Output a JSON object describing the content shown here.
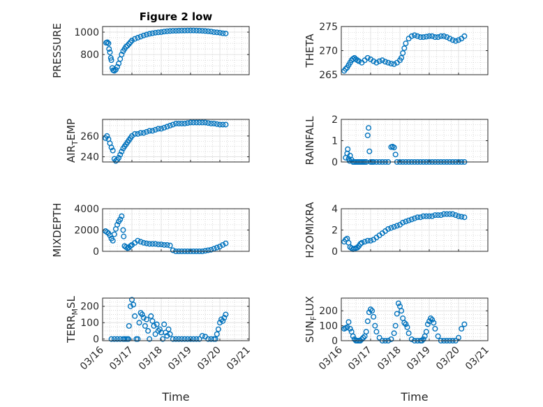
{
  "figure_title": "Figure 2 low",
  "x_axis": {
    "label": "Time",
    "ticks": [
      {
        "day": 16,
        "label": "03/16"
      },
      {
        "day": 17,
        "label": "03/17"
      },
      {
        "day": 18,
        "label": "03/18"
      },
      {
        "day": 19,
        "label": "03/19"
      },
      {
        "day": 20,
        "label": "03/20"
      },
      {
        "day": 21,
        "label": "03/21"
      }
    ],
    "xlim": [
      16,
      21
    ]
  },
  "colors": {
    "marker": "#0072BD",
    "axes": "#262626",
    "grid": "#bfbfbf"
  },
  "chart_data": [
    {
      "type": "scatter",
      "ylabel": "PRESSURE",
      "ylim": [
        620,
        1050
      ],
      "yticks": [
        800,
        1000
      ],
      "show_xticks": false,
      "x": [
        16.12,
        16.16,
        16.2,
        16.22,
        16.25,
        16.28,
        16.3,
        16.33,
        16.36,
        16.4,
        16.45,
        16.5,
        16.55,
        16.6,
        16.65,
        16.7,
        16.75,
        16.8,
        16.85,
        16.9,
        16.95,
        17.0,
        17.1,
        17.2,
        17.3,
        17.4,
        17.5,
        17.6,
        17.7,
        17.8,
        17.9,
        18.0,
        18.1,
        18.2,
        18.3,
        18.4,
        18.5,
        18.6,
        18.7,
        18.8,
        18.9,
        19.0,
        19.1,
        19.2,
        19.3,
        19.4,
        19.5,
        19.6,
        19.7,
        19.8,
        19.9,
        20.0,
        20.1,
        20.2
      ],
      "values": [
        905,
        910,
        900,
        850,
        820,
        770,
        750,
        680,
        660,
        655,
        665,
        690,
        720,
        760,
        800,
        830,
        850,
        870,
        880,
        895,
        910,
        925,
        940,
        950,
        960,
        970,
        978,
        985,
        990,
        995,
        998,
        1000,
        1005,
        1008,
        1010,
        1012,
        1012,
        1013,
        1014,
        1014,
        1015,
        1015,
        1015,
        1014,
        1013,
        1012,
        1010,
        1008,
        1005,
        1000,
        998,
        995,
        990,
        988
      ]
    },
    {
      "type": "scatter",
      "ylabel": "THETA",
      "ylim": [
        265,
        275
      ],
      "yticks": [
        265,
        270,
        275
      ],
      "show_xticks": false,
      "x": [
        16.1,
        16.15,
        16.2,
        16.25,
        16.3,
        16.35,
        16.4,
        16.45,
        16.5,
        16.55,
        16.6,
        16.7,
        16.8,
        16.9,
        17.0,
        17.1,
        17.2,
        17.3,
        17.4,
        17.5,
        17.6,
        17.7,
        17.8,
        17.9,
        18.0,
        18.05,
        18.1,
        18.15,
        18.2,
        18.3,
        18.4,
        18.5,
        18.6,
        18.7,
        18.8,
        18.9,
        19.0,
        19.1,
        19.2,
        19.3,
        19.4,
        19.5,
        19.6,
        19.7,
        19.8,
        19.9,
        20.0,
        20.1,
        20.2
      ],
      "values": [
        265.8,
        266.2,
        266.5,
        267,
        267.5,
        268,
        268.3,
        268.5,
        268.2,
        268,
        267.8,
        267.5,
        268,
        268.5,
        268.2,
        267.8,
        267.5,
        267.8,
        268,
        267.7,
        267.5,
        267.3,
        267.2,
        267.5,
        268,
        268.5,
        269.5,
        270.5,
        271.5,
        272.5,
        273,
        273.2,
        273,
        272.8,
        272.8,
        272.9,
        273,
        273,
        272.8,
        272.8,
        273,
        273,
        272.8,
        272.5,
        272.2,
        272,
        272.2,
        272.5,
        273
      ]
    },
    {
      "type": "scatter",
      "ylabel": "AIR_TEMP",
      "ylim": [
        235,
        276
      ],
      "yticks": [
        240,
        260
      ],
      "show_xticks": false,
      "x": [
        16.1,
        16.15,
        16.2,
        16.25,
        16.3,
        16.35,
        16.4,
        16.45,
        16.5,
        16.55,
        16.6,
        16.65,
        16.7,
        16.75,
        16.8,
        16.85,
        16.9,
        16.95,
        17.0,
        17.1,
        17.2,
        17.3,
        17.4,
        17.5,
        17.6,
        17.7,
        17.8,
        17.9,
        18.0,
        18.1,
        18.2,
        18.3,
        18.4,
        18.5,
        18.6,
        18.7,
        18.8,
        18.9,
        19.0,
        19.1,
        19.2,
        19.3,
        19.4,
        19.5,
        19.6,
        19.7,
        19.8,
        19.9,
        20.0,
        20.1,
        20.2
      ],
      "values": [
        258,
        260,
        257,
        253,
        249,
        246,
        238,
        236,
        237,
        239,
        242,
        245,
        248,
        250,
        252,
        254,
        256,
        258,
        260,
        262,
        262,
        263,
        263,
        264,
        265,
        265,
        266,
        267,
        267,
        268,
        269,
        270,
        271,
        272,
        272,
        272,
        272,
        272.5,
        273,
        273,
        273,
        273,
        273,
        273,
        272.5,
        272,
        272,
        271.5,
        271,
        271,
        271
      ]
    },
    {
      "type": "scatter",
      "ylabel": "RAINFALL",
      "ylim": [
        0,
        2
      ],
      "yticks": [
        0,
        1,
        2
      ],
      "show_xticks": false,
      "x": [
        16.15,
        16.2,
        16.22,
        16.25,
        16.28,
        16.3,
        16.35,
        16.4,
        16.45,
        16.5,
        16.55,
        16.6,
        16.65,
        16.7,
        16.75,
        16.8,
        16.85,
        16.9,
        16.93,
        16.96,
        17.0,
        17.05,
        17.1,
        17.2,
        17.3,
        17.4,
        17.5,
        17.6,
        17.7,
        17.75,
        17.8,
        17.85,
        17.9,
        18.0,
        18.1,
        18.2,
        18.3,
        18.4,
        18.5,
        18.6,
        18.7,
        18.8,
        18.9,
        19.0,
        19.1,
        19.2,
        19.3,
        19.4,
        19.5,
        19.6,
        19.7,
        19.8,
        19.9,
        20.0,
        20.1,
        20.2
      ],
      "values": [
        0.2,
        0.4,
        0.6,
        0.15,
        0.05,
        0.3,
        0.1,
        0,
        0,
        0,
        0,
        0,
        0,
        0,
        0,
        0,
        0,
        1.25,
        1.6,
        0.5,
        0,
        0,
        0,
        0,
        0,
        0,
        0,
        0,
        0.7,
        0.72,
        0.68,
        0.35,
        0,
        0,
        0,
        0,
        0,
        0,
        0,
        0,
        0,
        0,
        0,
        0,
        0,
        0,
        0,
        0,
        0,
        0,
        0,
        0,
        0,
        0,
        0,
        0
      ]
    },
    {
      "type": "scatter",
      "ylabel": "MIXDEPTH",
      "ylim": [
        0,
        4000
      ],
      "yticks": [
        0,
        2000,
        4000
      ],
      "show_xticks": false,
      "x": [
        16.1,
        16.15,
        16.2,
        16.25,
        16.3,
        16.35,
        16.4,
        16.45,
        16.5,
        16.55,
        16.6,
        16.65,
        16.7,
        16.72,
        16.75,
        16.8,
        16.85,
        16.9,
        16.95,
        17.0,
        17.1,
        17.2,
        17.3,
        17.4,
        17.5,
        17.6,
        17.7,
        17.8,
        17.9,
        18.0,
        18.1,
        18.2,
        18.3,
        18.4,
        18.5,
        18.6,
        18.7,
        18.8,
        18.9,
        19.0,
        19.1,
        19.2,
        19.3,
        19.4,
        19.5,
        19.6,
        19.7,
        19.8,
        19.9,
        20.0,
        20.1,
        20.2
      ],
      "values": [
        1900,
        1800,
        1700,
        1500,
        1200,
        1000,
        1600,
        2100,
        2500,
        2800,
        3000,
        3300,
        2000,
        1400,
        500,
        400,
        300,
        350,
        500,
        600,
        800,
        1000,
        900,
        800,
        750,
        700,
        700,
        700,
        650,
        650,
        600,
        600,
        550,
        100,
        0,
        0,
        0,
        0,
        0,
        0,
        0,
        0,
        0,
        0,
        50,
        100,
        150,
        250,
        350,
        450,
        600,
        750
      ]
    },
    {
      "type": "scatter",
      "ylabel": "H2OMIXRA",
      "ylim": [
        0,
        4
      ],
      "yticks": [
        0,
        2,
        4
      ],
      "show_xticks": false,
      "x": [
        16.1,
        16.15,
        16.2,
        16.25,
        16.3,
        16.35,
        16.4,
        16.45,
        16.5,
        16.55,
        16.6,
        16.65,
        16.7,
        16.8,
        16.9,
        17.0,
        17.1,
        17.2,
        17.3,
        17.4,
        17.5,
        17.6,
        17.7,
        17.8,
        17.9,
        18.0,
        18.1,
        18.2,
        18.3,
        18.4,
        18.5,
        18.6,
        18.7,
        18.8,
        18.9,
        19.0,
        19.1,
        19.2,
        19.3,
        19.4,
        19.5,
        19.6,
        19.7,
        19.8,
        19.9,
        20.0,
        20.1,
        20.2
      ],
      "values": [
        0.9,
        1.1,
        1.2,
        0.8,
        0.4,
        0.3,
        0.2,
        0.25,
        0.3,
        0.35,
        0.5,
        0.7,
        0.8,
        0.9,
        1.0,
        1.0,
        1.1,
        1.3,
        1.5,
        1.7,
        1.9,
        2.1,
        2.2,
        2.3,
        2.4,
        2.5,
        2.7,
        2.8,
        2.9,
        3.0,
        3.1,
        3.2,
        3.2,
        3.3,
        3.3,
        3.3,
        3.3,
        3.4,
        3.4,
        3.4,
        3.5,
        3.5,
        3.5,
        3.5,
        3.4,
        3.3,
        3.25,
        3.2
      ]
    },
    {
      "type": "scatter",
      "ylabel": "TERR_MSL",
      "ylim": [
        -10,
        250
      ],
      "yticks": [
        0,
        100,
        200
      ],
      "show_xticks": true,
      "x": [
        16.3,
        16.4,
        16.5,
        16.6,
        16.7,
        16.75,
        16.8,
        16.85,
        16.88,
        16.9,
        16.95,
        17.0,
        17.05,
        17.1,
        17.15,
        17.2,
        17.25,
        17.3,
        17.35,
        17.4,
        17.45,
        17.5,
        17.55,
        17.6,
        17.65,
        17.7,
        17.75,
        17.8,
        17.85,
        17.9,
        17.95,
        18.0,
        18.05,
        18.1,
        18.15,
        18.2,
        18.25,
        18.3,
        18.4,
        18.5,
        18.6,
        18.7,
        18.8,
        18.9,
        19.0,
        19.1,
        19.2,
        19.3,
        19.4,
        19.5,
        19.6,
        19.7,
        19.8,
        19.85,
        19.9,
        19.95,
        20.0,
        20.05,
        20.1,
        20.15,
        20.2
      ],
      "values": [
        0,
        0,
        0,
        0,
        0,
        0,
        0,
        0,
        0,
        80,
        200,
        240,
        210,
        140,
        0,
        0,
        100,
        160,
        150,
        130,
        80,
        120,
        50,
        0,
        140,
        110,
        80,
        30,
        90,
        50,
        60,
        40,
        0,
        90,
        40,
        20,
        60,
        30,
        0,
        0,
        0,
        0,
        0,
        0,
        0,
        0,
        0,
        0,
        20,
        15,
        0,
        0,
        0,
        0,
        30,
        60,
        100,
        120,
        110,
        130,
        150
      ]
    },
    {
      "type": "scatter",
      "ylabel": "SUN_FLUX",
      "ylim": [
        0,
        285
      ],
      "yticks": [
        0,
        100,
        200
      ],
      "show_xticks": true,
      "x": [
        16.1,
        16.15,
        16.2,
        16.25,
        16.3,
        16.35,
        16.4,
        16.45,
        16.5,
        16.55,
        16.6,
        16.65,
        16.7,
        16.75,
        16.8,
        16.85,
        16.9,
        16.95,
        17.0,
        17.05,
        17.1,
        17.15,
        17.2,
        17.3,
        17.4,
        17.5,
        17.6,
        17.7,
        17.8,
        17.85,
        17.9,
        17.95,
        18.0,
        18.05,
        18.1,
        18.15,
        18.2,
        18.25,
        18.3,
        18.4,
        18.5,
        18.6,
        18.7,
        18.75,
        18.8,
        18.85,
        18.9,
        18.95,
        19.0,
        19.05,
        19.1,
        19.15,
        19.2,
        19.3,
        19.4,
        19.5,
        19.6,
        19.7,
        19.8,
        19.9,
        20.0,
        20.1,
        20.2
      ],
      "values": [
        80,
        85,
        90,
        125,
        80,
        60,
        30,
        10,
        0,
        0,
        0,
        0,
        10,
        20,
        30,
        60,
        130,
        190,
        210,
        200,
        160,
        100,
        60,
        20,
        0,
        0,
        0,
        10,
        50,
        100,
        180,
        250,
        230,
        200,
        150,
        120,
        110,
        90,
        50,
        10,
        0,
        0,
        0,
        0,
        10,
        30,
        60,
        110,
        130,
        150,
        140,
        120,
        80,
        30,
        0,
        0,
        0,
        0,
        0,
        0,
        20,
        80,
        110
      ]
    }
  ]
}
